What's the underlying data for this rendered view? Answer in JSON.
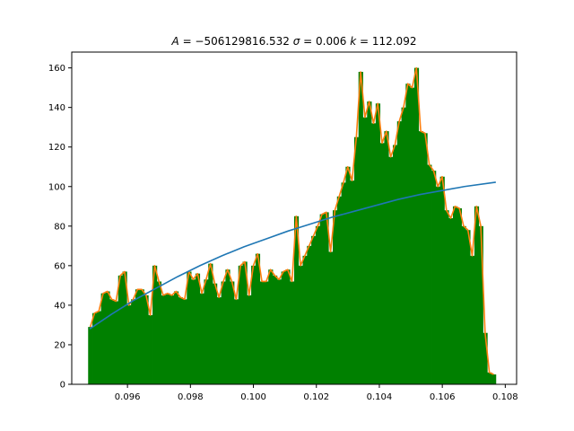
{
  "chart_data": {
    "type": "bar",
    "title": "A = −506129816.532 σ = 0.006 k = 112.092",
    "title_parts": {
      "A_sym": "A",
      "A_eq": " = −506129816.532 ",
      "sigma_sym": "σ",
      "sigma_eq": " = 0.006 ",
      "k_sym": "k",
      "k_eq": " = 112.092"
    },
    "xlabel": "",
    "ylabel": "",
    "xlim": [
      0.09423,
      0.10836
    ],
    "ylim": [
      0,
      168
    ],
    "xticks": [
      0.096,
      0.098,
      0.1,
      0.102,
      0.104,
      0.106,
      0.108
    ],
    "xtick_labels": [
      "0.096",
      "0.098",
      "0.100",
      "0.102",
      "0.104",
      "0.106",
      "0.108"
    ],
    "yticks": [
      0,
      20,
      40,
      60,
      80,
      100,
      120,
      140,
      160
    ],
    "ytick_labels": [
      "0",
      "20",
      "40",
      "60",
      "80",
      "100",
      "120",
      "140",
      "160"
    ],
    "grid": false,
    "colors": {
      "histogram": "#008000",
      "outline": "#ff7f0e",
      "fit": "#1f77b4"
    },
    "histogram": {
      "x_start": 0.09475,
      "x_end": 0.1077,
      "values": [
        29,
        36,
        37,
        46,
        47,
        43,
        42,
        55,
        57,
        40,
        43,
        48,
        48,
        45,
        35,
        60,
        52,
        45,
        46,
        45,
        47,
        44,
        43,
        57,
        53,
        56,
        46,
        53,
        61,
        51,
        44,
        52,
        58,
        52,
        43,
        60,
        62,
        45,
        60,
        66,
        52,
        52,
        58,
        55,
        53,
        57,
        58,
        52,
        85,
        60,
        65,
        70,
        75,
        80,
        86,
        87,
        67,
        88,
        95,
        102,
        110,
        103,
        125,
        158,
        135,
        143,
        132,
        142,
        122,
        128,
        115,
        121,
        133,
        140,
        152,
        150,
        160,
        128,
        127,
        111,
        108,
        100,
        105,
        88,
        84,
        90,
        89,
        80,
        78,
        65,
        90,
        80,
        26,
        6,
        5
      ]
    },
    "series": [
      {
        "type": "line",
        "x": [
          0.0948,
          0.0955,
          0.0962,
          0.0969,
          0.0976,
          0.0983,
          0.099,
          0.0997,
          0.1004,
          0.1011,
          0.1018,
          0.1025,
          0.1032,
          0.1039,
          0.1046,
          0.1053,
          0.106,
          0.1067,
          0.1077
        ],
        "y": [
          28,
          35.5,
          42.5,
          48.5,
          54.5,
          60,
          65,
          69.5,
          73.5,
          77.5,
          81,
          84.5,
          87.5,
          90.5,
          93.5,
          96,
          98,
          100,
          102.2
        ]
      }
    ]
  }
}
